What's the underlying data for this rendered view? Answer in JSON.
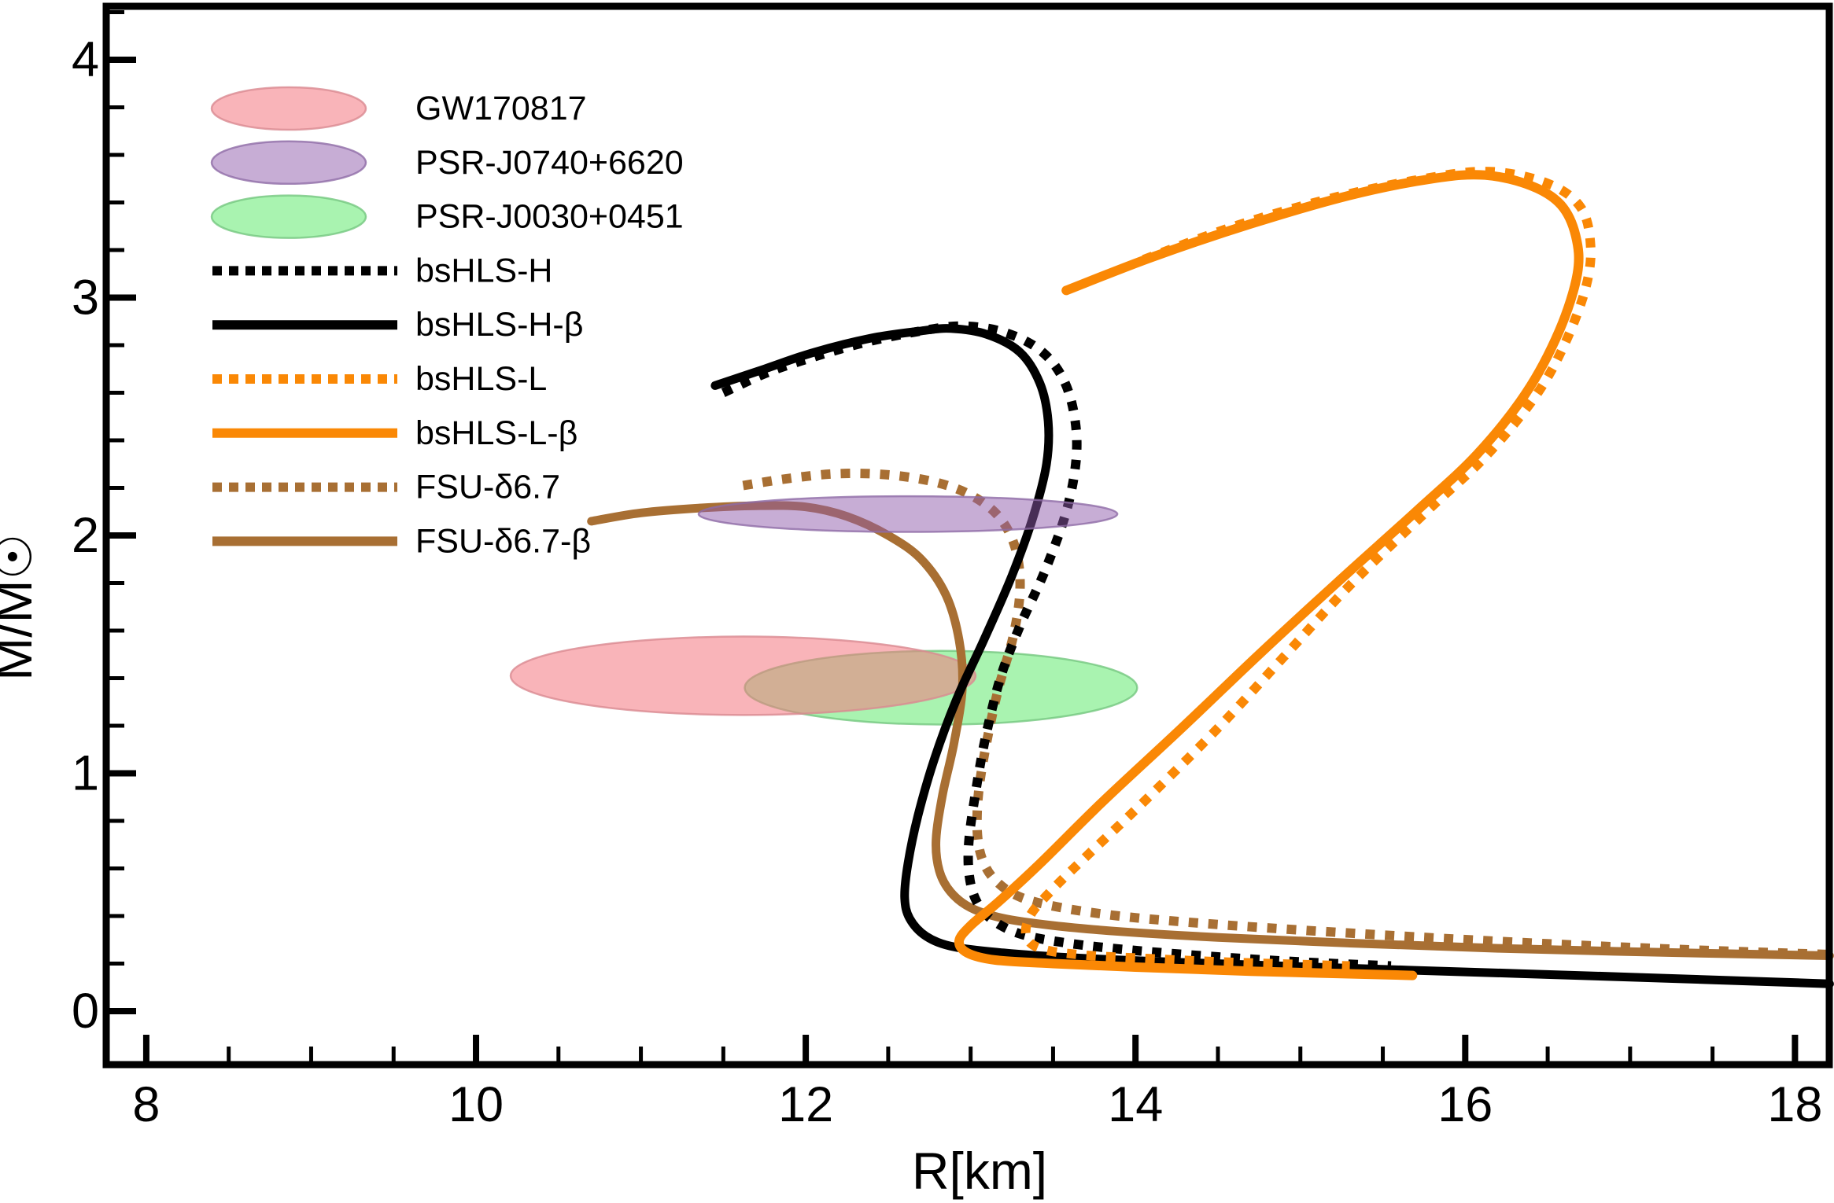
{
  "chart_data": {
    "type": "line",
    "title": "",
    "xlabel": "R[km]",
    "ylabel": "M/M☉",
    "xlim": [
      7.76,
      18.21
    ],
    "ylim": [
      -0.22,
      4.22
    ],
    "x_ticks": [
      8,
      10,
      12,
      14,
      16,
      18
    ],
    "y_ticks": [
      0,
      1,
      2,
      3,
      4
    ],
    "x_minor_step": 0.5,
    "y_minor_step": 0.2,
    "grid": false,
    "legend_position": "upper left",
    "frame": true,
    "colors": {
      "black": "#000000",
      "orange": "#FA8805",
      "brown": "#A86F33",
      "pink_fill": "#F4777F",
      "green_fill": "#53E862",
      "purple_fill": "#8F5CAB"
    },
    "ellipses": [
      {
        "name": "PSR-J0030+0451",
        "cx": 12.82,
        "cy": 1.36,
        "rx": 1.19,
        "ry": 0.155,
        "fill": "#53E862",
        "stroke": "#74C77F",
        "fill_opacity": 0.5,
        "layer": "below"
      },
      {
        "name": "GW170817",
        "cx": 11.62,
        "cy": 1.41,
        "rx": 1.41,
        "ry": 0.165,
        "fill": "#F4777F",
        "stroke": "#D98A91",
        "fill_opacity": 0.55,
        "layer": "below"
      },
      {
        "name": "PSR-J0740+6620",
        "cx": 12.62,
        "cy": 2.09,
        "rx": 1.27,
        "ry": 0.075,
        "fill": "#8F5CAB",
        "stroke": "#8F6BA6",
        "fill_opacity": 0.5,
        "layer": "above"
      }
    ],
    "series": [
      {
        "name": "FSU-δ6.7",
        "style": "dotted",
        "color": "#A86F33",
        "width": 12,
        "points": [
          [
            11.62,
            2.21
          ],
          [
            11.9,
            2.24
          ],
          [
            12.2,
            2.26
          ],
          [
            12.5,
            2.255
          ],
          [
            12.78,
            2.225
          ],
          [
            13.0,
            2.17
          ],
          [
            13.17,
            2.08
          ],
          [
            13.27,
            1.95
          ],
          [
            13.3,
            1.78
          ],
          [
            13.26,
            1.58
          ],
          [
            13.17,
            1.36
          ],
          [
            13.1,
            1.14
          ],
          [
            13.05,
            0.93
          ],
          [
            13.04,
            0.76
          ],
          [
            13.07,
            0.64
          ],
          [
            13.15,
            0.55
          ],
          [
            13.3,
            0.48
          ],
          [
            13.55,
            0.435
          ],
          [
            13.9,
            0.4
          ],
          [
            14.3,
            0.375
          ],
          [
            14.8,
            0.35
          ],
          [
            15.5,
            0.32
          ],
          [
            16.3,
            0.29
          ],
          [
            17.2,
            0.262
          ],
          [
            18.21,
            0.238
          ]
        ]
      },
      {
        "name": "FSU-δ6.7-β",
        "style": "solid",
        "color": "#A86F33",
        "width": 11,
        "points": [
          [
            10.7,
            2.06
          ],
          [
            11.0,
            2.095
          ],
          [
            11.35,
            2.115
          ],
          [
            11.7,
            2.125
          ],
          [
            12.0,
            2.12
          ],
          [
            12.25,
            2.08
          ],
          [
            12.5,
            2.0
          ],
          [
            12.7,
            1.9
          ],
          [
            12.85,
            1.75
          ],
          [
            12.93,
            1.56
          ],
          [
            12.95,
            1.36
          ],
          [
            12.9,
            1.13
          ],
          [
            12.83,
            0.91
          ],
          [
            12.79,
            0.72
          ],
          [
            12.81,
            0.59
          ],
          [
            12.88,
            0.5
          ],
          [
            13.0,
            0.435
          ],
          [
            13.2,
            0.39
          ],
          [
            13.5,
            0.36
          ],
          [
            13.9,
            0.335
          ],
          [
            14.5,
            0.31
          ],
          [
            15.3,
            0.286
          ],
          [
            16.2,
            0.264
          ],
          [
            17.2,
            0.247
          ],
          [
            18.21,
            0.233
          ]
        ]
      },
      {
        "name": "bsHLS-H",
        "style": "dotted",
        "color": "#000000",
        "width": 12,
        "points": [
          [
            11.5,
            2.6
          ],
          [
            11.75,
            2.68
          ],
          [
            12.0,
            2.74
          ],
          [
            12.35,
            2.81
          ],
          [
            12.7,
            2.86
          ],
          [
            12.95,
            2.88
          ],
          [
            13.2,
            2.855
          ],
          [
            13.42,
            2.78
          ],
          [
            13.56,
            2.66
          ],
          [
            13.63,
            2.5
          ],
          [
            13.64,
            2.32
          ],
          [
            13.58,
            2.1
          ],
          [
            13.45,
            1.85
          ],
          [
            13.3,
            1.62
          ],
          [
            13.18,
            1.4
          ],
          [
            13.09,
            1.15
          ],
          [
            13.03,
            0.92
          ],
          [
            12.99,
            0.72
          ],
          [
            12.99,
            0.58
          ],
          [
            13.03,
            0.47
          ],
          [
            13.12,
            0.39
          ],
          [
            13.3,
            0.325
          ],
          [
            13.6,
            0.285
          ],
          [
            14.0,
            0.255
          ],
          [
            14.5,
            0.228
          ],
          [
            15.0,
            0.207
          ],
          [
            15.55,
            0.19
          ]
        ]
      },
      {
        "name": "bsHLS-H-β",
        "style": "solid",
        "color": "#000000",
        "width": 11,
        "points": [
          [
            11.45,
            2.63
          ],
          [
            11.75,
            2.7
          ],
          [
            12.05,
            2.77
          ],
          [
            12.4,
            2.83
          ],
          [
            12.7,
            2.86
          ],
          [
            12.88,
            2.87
          ],
          [
            13.1,
            2.845
          ],
          [
            13.3,
            2.77
          ],
          [
            13.42,
            2.64
          ],
          [
            13.47,
            2.48
          ],
          [
            13.46,
            2.3
          ],
          [
            13.38,
            2.08
          ],
          [
            13.25,
            1.83
          ],
          [
            13.08,
            1.56
          ],
          [
            12.92,
            1.32
          ],
          [
            12.78,
            1.06
          ],
          [
            12.68,
            0.82
          ],
          [
            12.62,
            0.62
          ],
          [
            12.6,
            0.48
          ],
          [
            12.63,
            0.39
          ],
          [
            12.73,
            0.315
          ],
          [
            12.9,
            0.27
          ],
          [
            13.2,
            0.245
          ],
          [
            13.6,
            0.225
          ],
          [
            14.2,
            0.207
          ],
          [
            15.0,
            0.187
          ],
          [
            16.0,
            0.165
          ],
          [
            17.0,
            0.143
          ],
          [
            18.21,
            0.115
          ]
        ]
      },
      {
        "name": "bsHLS-L",
        "style": "dotted",
        "color": "#FA8805",
        "width": 12,
        "points": [
          [
            14.05,
            3.16
          ],
          [
            14.6,
            3.3
          ],
          [
            15.2,
            3.42
          ],
          [
            15.75,
            3.5
          ],
          [
            16.15,
            3.53
          ],
          [
            16.5,
            3.48
          ],
          [
            16.7,
            3.38
          ],
          [
            16.76,
            3.22
          ],
          [
            16.73,
            3.04
          ],
          [
            16.6,
            2.8
          ],
          [
            16.42,
            2.58
          ],
          [
            16.12,
            2.33
          ],
          [
            15.78,
            2.11
          ],
          [
            15.3,
            1.79
          ],
          [
            14.9,
            1.49
          ],
          [
            14.5,
            1.19
          ],
          [
            14.05,
            0.88
          ],
          [
            13.7,
            0.65
          ],
          [
            13.48,
            0.5
          ],
          [
            13.36,
            0.4
          ],
          [
            13.34,
            0.31
          ],
          [
            13.44,
            0.26
          ],
          [
            13.7,
            0.235
          ],
          [
            14.1,
            0.22
          ],
          [
            14.6,
            0.205
          ],
          [
            15.3,
            0.19
          ]
        ]
      },
      {
        "name": "bsHLS-L-β",
        "style": "solid",
        "color": "#FA8805",
        "width": 12,
        "points": [
          [
            13.58,
            3.03
          ],
          [
            14.1,
            3.17
          ],
          [
            14.7,
            3.31
          ],
          [
            15.3,
            3.43
          ],
          [
            15.8,
            3.5
          ],
          [
            16.12,
            3.515
          ],
          [
            16.4,
            3.47
          ],
          [
            16.58,
            3.39
          ],
          [
            16.67,
            3.26
          ],
          [
            16.68,
            3.1
          ],
          [
            16.57,
            2.86
          ],
          [
            16.37,
            2.6
          ],
          [
            16.07,
            2.34
          ],
          [
            15.7,
            2.1
          ],
          [
            15.22,
            1.8
          ],
          [
            14.75,
            1.5
          ],
          [
            14.28,
            1.19
          ],
          [
            13.8,
            0.88
          ],
          [
            13.42,
            0.62
          ],
          [
            13.17,
            0.46
          ],
          [
            13.0,
            0.36
          ],
          [
            12.93,
            0.295
          ],
          [
            12.98,
            0.245
          ],
          [
            13.15,
            0.215
          ],
          [
            13.5,
            0.2
          ],
          [
            14.0,
            0.185
          ],
          [
            14.7,
            0.168
          ],
          [
            15.68,
            0.15
          ]
        ]
      }
    ],
    "legend": {
      "items": [
        {
          "type": "ellipse",
          "label": "GW170817",
          "fill": "#F4777F",
          "stroke": "#D98A91",
          "fill_opacity": 0.55
        },
        {
          "type": "ellipse",
          "label": "PSR-J0740+6620",
          "fill": "#8F5CAB",
          "stroke": "#8F6BA6",
          "fill_opacity": 0.5
        },
        {
          "type": "ellipse",
          "label": "PSR-J0030+0451",
          "fill": "#53E862",
          "stroke": "#74C77F",
          "fill_opacity": 0.5
        },
        {
          "type": "line",
          "style": "dotted",
          "label": "bsHLS-H",
          "color": "#000000"
        },
        {
          "type": "line",
          "style": "solid",
          "label": "bsHLS-H-β",
          "color": "#000000"
        },
        {
          "type": "line",
          "style": "dotted",
          "label": "bsHLS-L",
          "color": "#FA8805"
        },
        {
          "type": "line",
          "style": "solid",
          "label": "bsHLS-L-β",
          "color": "#FA8805"
        },
        {
          "type": "line",
          "style": "dotted",
          "label": "FSU-δ6.7",
          "color": "#A86F33"
        },
        {
          "type": "line",
          "style": "solid",
          "label": "FSU-δ6.7-β",
          "color": "#A86F33"
        }
      ]
    }
  }
}
